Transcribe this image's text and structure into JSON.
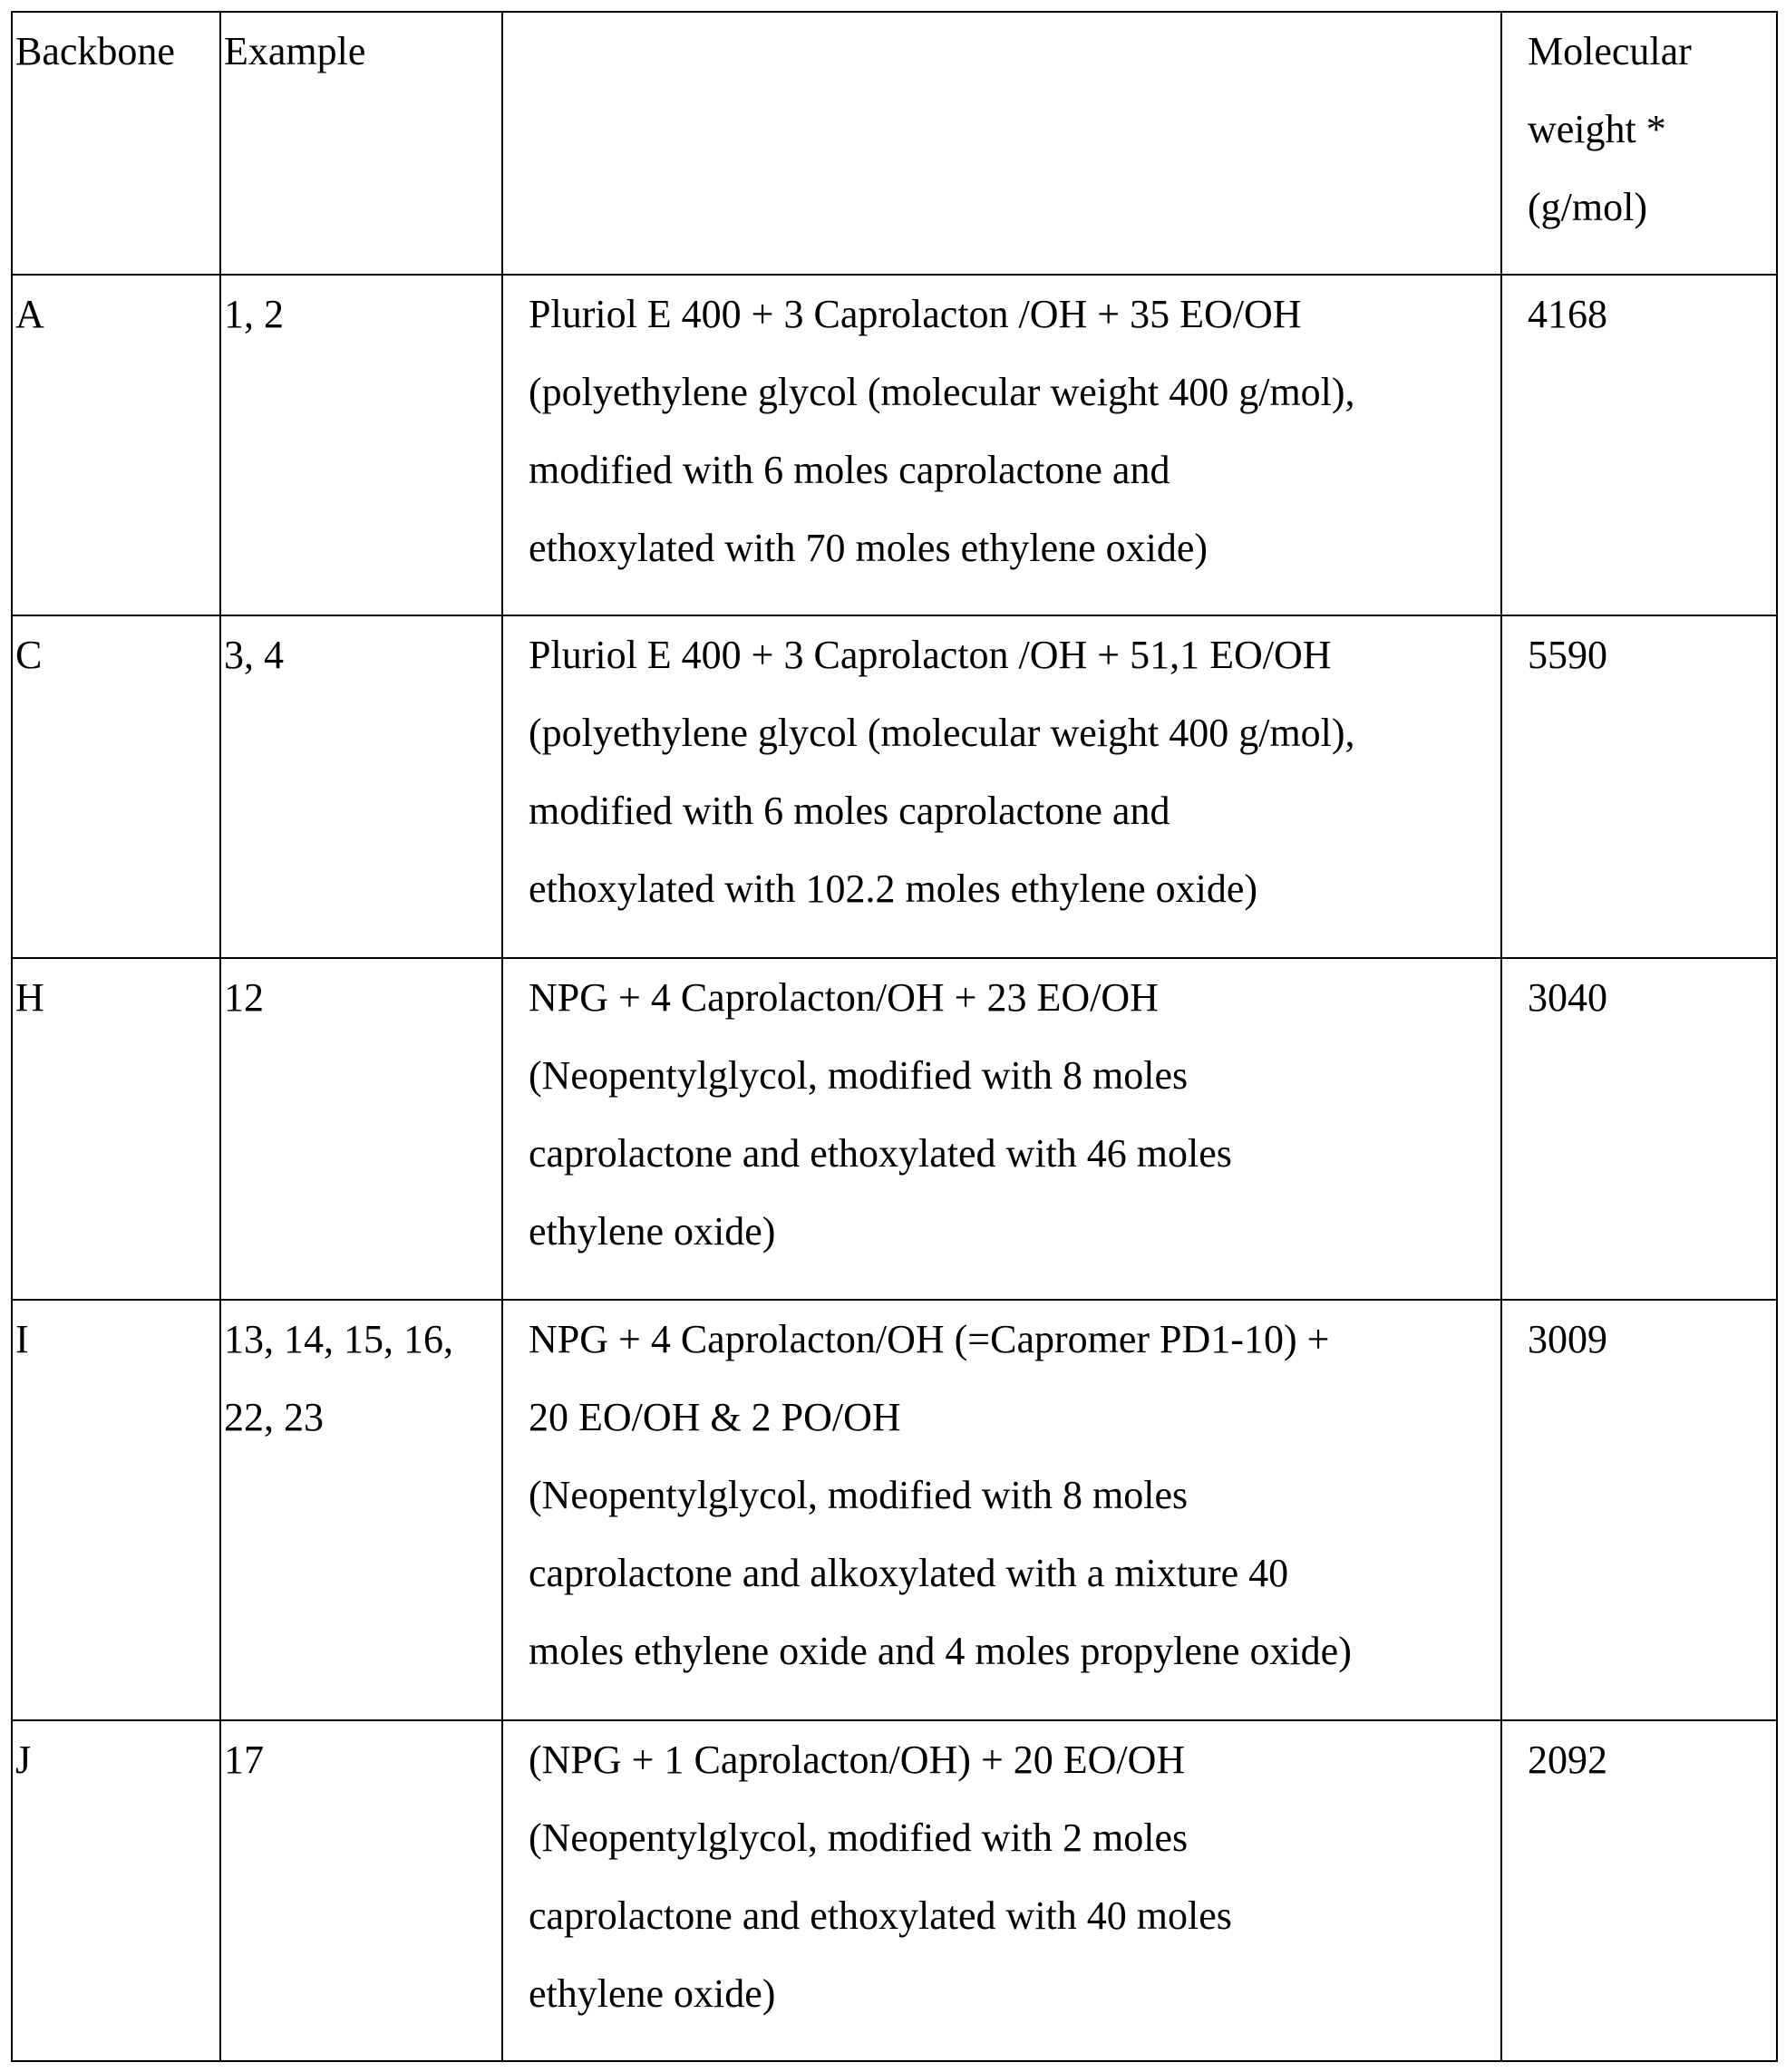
{
  "table": {
    "headers": [
      "Backbone",
      "Example",
      "",
      "Molecular\nweight *\n(g/mol)"
    ],
    "rows": [
      {
        "backbone": "A",
        "example": "1, 2",
        "description": "Pluriol E 400 + 3 Caprolacton /OH + 35 EO/OH\n(polyethylene glycol (molecular weight 400 g/mol),\nmodified with 6 moles caprolactone and\nethoxylated with 70 moles ethylene oxide)",
        "mw": "4168"
      },
      {
        "backbone": "C",
        "example": "3, 4",
        "description": "Pluriol E 400 + 3 Caprolacton /OH + 51,1 EO/OH\n(polyethylene glycol (molecular weight 400 g/mol),\nmodified with 6 moles caprolactone and\nethoxylated with 102.2 moles ethylene oxide)",
        "mw": "5590"
      },
      {
        "backbone": "H",
        "example": "12",
        "description": "NPG + 4 Caprolacton/OH + 23 EO/OH\n(Neopentylglycol, modified with 8 moles\ncaprolactone and ethoxylated with 46 moles\nethylene oxide)",
        "mw": "3040"
      },
      {
        "backbone": "I",
        "example": "13, 14, 15, 16,\n22, 23",
        "description": "NPG + 4 Caprolacton/OH (=Capromer PD1-10)  +\n20 EO/OH & 2 PO/OH\n(Neopentylglycol, modified with 8 moles\ncaprolactone and alkoxylated with a mixture 40\nmoles ethylene oxide and 4 moles propylene oxide)",
        "mw": "3009"
      },
      {
        "backbone": "J",
        "example": "17",
        "description": "(NPG + 1 Caprolacton/OH) + 20 EO/OH\n(Neopentylglycol, modified with 2 moles\ncaprolactone and ethoxylated with 40 moles\nethylene oxide)",
        "mw": "2092"
      }
    ]
  }
}
